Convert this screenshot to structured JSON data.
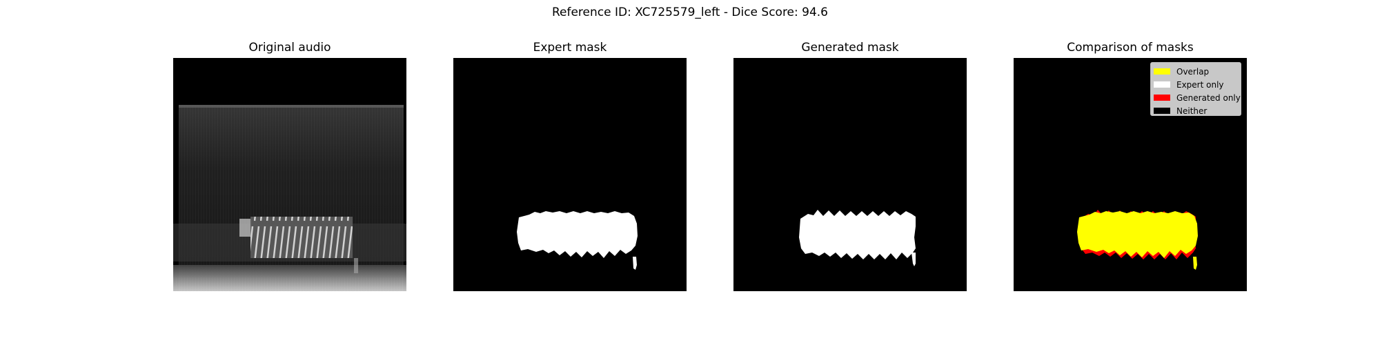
{
  "figure": {
    "suptitle": "Reference ID: XC725579_left - Dice Score: 94.6"
  },
  "panels": [
    {
      "title": "Original audio"
    },
    {
      "title": "Expert mask"
    },
    {
      "title": "Generated mask"
    },
    {
      "title": "Comparison of masks"
    }
  ],
  "legend": {
    "items": [
      {
        "label": "Overlap",
        "color": "#ffff00"
      },
      {
        "label": "Expert only",
        "color": "#ffffff"
      },
      {
        "label": "Generated only",
        "color": "#ff0000"
      },
      {
        "label": "Neither",
        "color": "#000000"
      }
    ]
  },
  "colors": {
    "background": "#000000",
    "mask": "#ffffff",
    "overlap": "#ffff00",
    "generated_only": "#ff0000"
  }
}
